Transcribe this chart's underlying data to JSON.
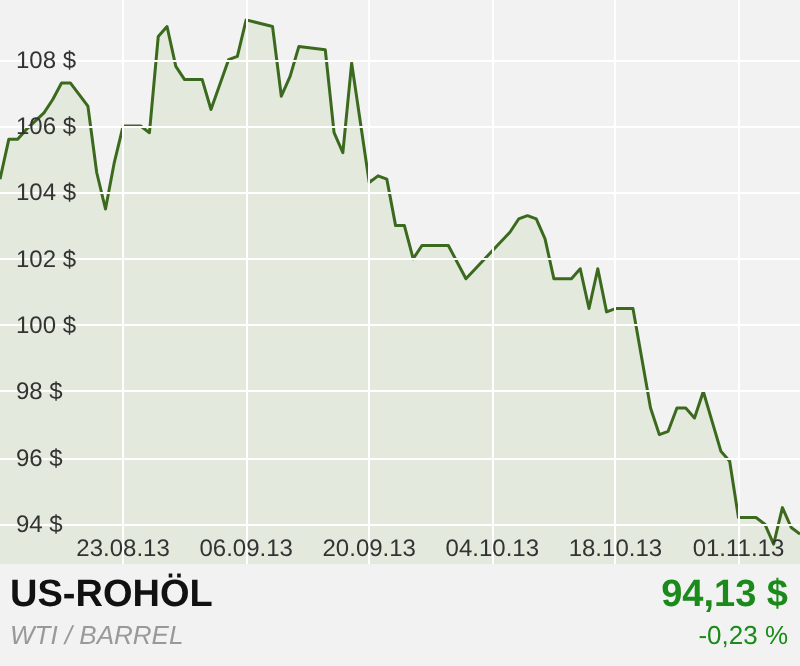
{
  "chart_data": {
    "type": "area",
    "title": "US-ROHÖL",
    "subtitle": "WTI / BARREL",
    "annotations": [
      "94,13 $",
      "-0,23 %"
    ],
    "x": [
      "2013-08-09",
      "2013-08-10",
      "2013-08-11",
      "2013-08-12",
      "2013-08-14",
      "2013-08-15",
      "2013-08-16",
      "2013-08-17",
      "2013-08-19",
      "2013-08-20",
      "2013-08-21",
      "2013-08-22",
      "2013-08-23",
      "2013-08-25",
      "2013-08-26",
      "2013-08-27",
      "2013-08-28",
      "2013-08-29",
      "2013-08-30",
      "2013-09-01",
      "2013-09-02",
      "2013-09-04",
      "2013-09-05",
      "2013-09-06",
      "2013-09-09",
      "2013-09-10",
      "2013-09-11",
      "2013-09-12",
      "2013-09-15",
      "2013-09-16",
      "2013-09-17",
      "2013-09-18",
      "2013-09-20",
      "2013-09-21",
      "2013-09-22",
      "2013-09-23",
      "2013-09-24",
      "2013-09-25",
      "2013-09-26",
      "2013-09-29",
      "2013-10-01",
      "2013-10-06",
      "2013-10-07",
      "2013-10-08",
      "2013-10-09",
      "2013-10-10",
      "2013-10-11",
      "2013-10-13",
      "2013-10-14",
      "2013-10-15",
      "2013-10-16",
      "2013-10-17",
      "2013-10-18",
      "2013-10-20",
      "2013-10-21",
      "2013-10-22",
      "2013-10-23",
      "2013-10-24",
      "2013-10-25",
      "2013-10-26",
      "2013-10-27",
      "2013-10-28",
      "2013-10-29",
      "2013-10-30",
      "2013-10-31",
      "2013-11-01",
      "2013-11-03",
      "2013-11-04",
      "2013-11-05",
      "2013-11-06",
      "2013-11-07",
      "2013-11-08"
    ],
    "series": [
      {
        "color": "#3b6a1e",
        "values": [
          104.4,
          105.6,
          105.6,
          105.9,
          106.4,
          106.8,
          107.3,
          107.3,
          106.6,
          104.6,
          103.5,
          104.9,
          106,
          106,
          105.8,
          108.7,
          109,
          107.8,
          107.4,
          107.4,
          106.5,
          108,
          108.1,
          109.2,
          109,
          106.9,
          107.5,
          108.4,
          108.3,
          105.8,
          105.2,
          107.9,
          104.3,
          104.5,
          104.4,
          103,
          103,
          102,
          102.4,
          102.4,
          101.4,
          102.8,
          103.2,
          103.3,
          103.2,
          102.6,
          101.4,
          101.4,
          101.7,
          100.5,
          101.7,
          100.4,
          100.5,
          100.5,
          99,
          97.5,
          96.7,
          96.8,
          97.5,
          97.5,
          97.2,
          98,
          97.1,
          96.2,
          95.9,
          94.2,
          94.2,
          94,
          93.4,
          94.5,
          93.9,
          93.7
        ]
      }
    ],
    "xlim": [
      "2013-08-09",
      "2013-11-08"
    ],
    "xticks": [
      {
        "value": "2013-08-23",
        "label": "23.08.13"
      },
      {
        "value": "2013-09-06",
        "label": "06.09.13"
      },
      {
        "value": "2013-09-20",
        "label": "20.09.13"
      },
      {
        "value": "2013-10-04",
        "label": "04.10.13"
      },
      {
        "value": "2013-10-18",
        "label": "18.10.13"
      },
      {
        "value": "2013-11-01",
        "label": "01.11.13"
      }
    ],
    "ylim": [
      92.8,
      109.8
    ],
    "yticks": [
      {
        "value": 94,
        "label": "94 $"
      },
      {
        "value": 96,
        "label": "96 $"
      },
      {
        "value": 98,
        "label": "98 $"
      },
      {
        "value": 100,
        "label": "100 $"
      },
      {
        "value": 102,
        "label": "102 $"
      },
      {
        "value": 104,
        "label": "104 $"
      },
      {
        "value": 106,
        "label": "106 $"
      },
      {
        "value": 108,
        "label": "108 $"
      }
    ],
    "grid": true,
    "marker": "none",
    "line_style": "solid"
  }
}
